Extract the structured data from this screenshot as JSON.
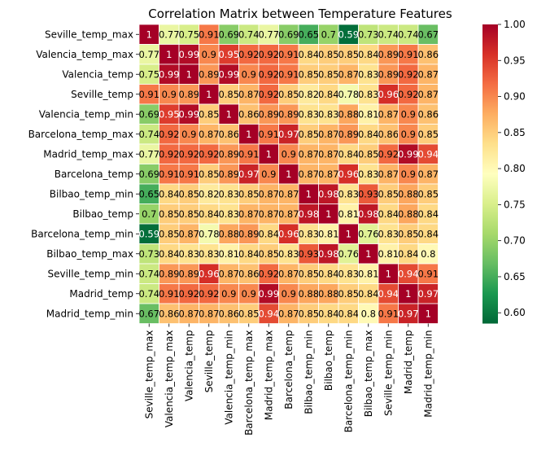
{
  "chart_data": {
    "type": "heatmap",
    "title": "Correlation Matrix between Temperature Features",
    "labels": [
      "Seville_temp_max",
      "Valencia_temp_max",
      "Valencia_temp",
      "Seville_temp",
      "Valencia_temp_min",
      "Barcelona_temp_max",
      "Madrid_temp_max",
      "Barcelona_temp",
      "Bilbao_temp_min",
      "Bilbao_temp",
      "Barcelona_temp_min",
      "Bilbao_temp_max",
      "Seville_temp_min",
      "Madrid_temp",
      "Madrid_temp_min"
    ],
    "cell_labels": [
      [
        "1",
        "0.77",
        "0.75",
        "0.91",
        "0.69",
        "0.74",
        "0.77",
        "0.69",
        "0.65",
        "0.7",
        "0.59",
        "0.73",
        "0.74",
        "0.74",
        "0.67"
      ],
      [
        "0.77",
        "1",
        "0.99",
        "0.9",
        "0.95",
        "0.92",
        "0.92",
        "0.91",
        "0.84",
        "0.85",
        "0.85",
        "0.84",
        "0.89",
        "0.91",
        "0.86"
      ],
      [
        "0.75",
        "0.99",
        "1",
        "0.89",
        "0.99",
        "0.9",
        "0.92",
        "0.91",
        "0.85",
        "0.85",
        "0.87",
        "0.83",
        "0.89",
        "0.92",
        "0.87"
      ],
      [
        "0.91",
        "0.9",
        "0.89",
        "1",
        "0.85",
        "0.87",
        "0.92",
        "0.85",
        "0.82",
        "0.84",
        "0.78",
        "0.83",
        "0.96",
        "0.92",
        "0.87"
      ],
      [
        "0.69",
        "0.95",
        "0.99",
        "0.85",
        "1",
        "0.86",
        "0.89",
        "0.89",
        "0.83",
        "0.83",
        "0.88",
        "0.81",
        "0.87",
        "0.9",
        "0.86"
      ],
      [
        "0.74",
        "0.92",
        "0.9",
        "0.87",
        "0.86",
        "1",
        "0.91",
        "0.97",
        "0.85",
        "0.87",
        "0.89",
        "0.84",
        "0.86",
        "0.9",
        "0.85"
      ],
      [
        "0.77",
        "0.92",
        "0.92",
        "0.92",
        "0.89",
        "0.91",
        "1",
        "0.9",
        "0.87",
        "0.87",
        "0.84",
        "0.85",
        "0.92",
        "0.99",
        "0.94"
      ],
      [
        "0.69",
        "0.91",
        "0.91",
        "0.85",
        "0.89",
        "0.97",
        "0.9",
        "1",
        "0.87",
        "0.87",
        "0.96",
        "0.83",
        "0.87",
        "0.9",
        "0.87"
      ],
      [
        "0.65",
        "0.84",
        "0.85",
        "0.82",
        "0.83",
        "0.85",
        "0.87",
        "0.87",
        "1",
        "0.98",
        "0.83",
        "0.93",
        "0.85",
        "0.88",
        "0.85"
      ],
      [
        "0.7",
        "0.85",
        "0.85",
        "0.84",
        "0.83",
        "0.87",
        "0.87",
        "0.87",
        "0.98",
        "1",
        "0.81",
        "0.98",
        "0.84",
        "0.88",
        "0.84"
      ],
      [
        "0.59",
        "0.85",
        "0.87",
        "0.78",
        "0.88",
        "0.89",
        "0.84",
        "0.96",
        "0.83",
        "0.81",
        "1",
        "0.76",
        "0.83",
        "0.85",
        "0.84"
      ],
      [
        "0.73",
        "0.84",
        "0.83",
        "0.83",
        "0.81",
        "0.84",
        "0.85",
        "0.83",
        "0.93",
        "0.98",
        "0.76",
        "1",
        "0.81",
        "0.84",
        "0.8"
      ],
      [
        "0.74",
        "0.89",
        "0.89",
        "0.96",
        "0.87",
        "0.86",
        "0.92",
        "0.87",
        "0.85",
        "0.84",
        "0.83",
        "0.81",
        "1",
        "0.94",
        "0.91"
      ],
      [
        "0.74",
        "0.91",
        "0.92",
        "0.92",
        "0.9",
        "0.9",
        "0.99",
        "0.9",
        "0.88",
        "0.88",
        "0.85",
        "0.84",
        "0.94",
        "1",
        "0.97"
      ],
      [
        "0.67",
        "0.86",
        "0.87",
        "0.87",
        "0.86",
        "0.85",
        "0.94",
        "0.87",
        "0.85",
        "0.84",
        "0.84",
        "0.8",
        "0.91",
        "0.97",
        "1"
      ]
    ],
    "colorbar": {
      "min": 0.585,
      "max": 1.0,
      "ticks": [
        "0.60",
        "0.65",
        "0.70",
        "0.75",
        "0.80",
        "0.85",
        "0.90",
        "0.95",
        "1.00"
      ],
      "colormap": "RdYlGn_r"
    },
    "colors": {
      "stops": [
        "#006837",
        "#1a9850",
        "#66bd63",
        "#a6d96a",
        "#d9ef8b",
        "#ffffbf",
        "#fee08b",
        "#fdae61",
        "#f46d43",
        "#d73027",
        "#a50026"
      ],
      "grid_line": "#ffffff"
    }
  }
}
